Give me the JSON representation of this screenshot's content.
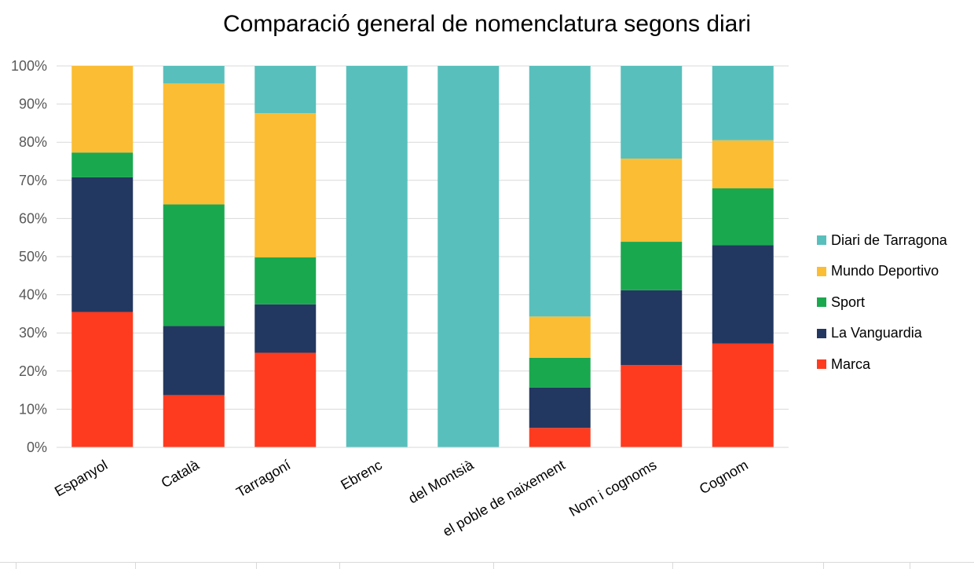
{
  "chart_data": {
    "type": "bar",
    "stacked": true,
    "percent": true,
    "title": "Comparació general de nomenclatura segons diari",
    "categories": [
      "Espanyol",
      "Català",
      "Tarragoní",
      "Ebrenc",
      "del Montsià",
      "el poble de naixement",
      "Nom i cognoms",
      "Cognom"
    ],
    "series": [
      {
        "name": "Marca",
        "color": "#ff3b1f",
        "values": [
          35.5,
          13.7,
          24.8,
          0,
          0,
          5.1,
          21.6,
          27.2
        ]
      },
      {
        "name": "La Vanguardia",
        "color": "#233860",
        "values": [
          35.3,
          18.1,
          12.7,
          0,
          0,
          10.6,
          19.6,
          25.8
        ]
      },
      {
        "name": "Sport",
        "color": "#1aa84f",
        "values": [
          6.5,
          31.9,
          12.3,
          0,
          0,
          7.8,
          12.7,
          14.9
        ]
      },
      {
        "name": "Mundo Deportivo",
        "color": "#fbbd33",
        "values": [
          22.7,
          31.7,
          37.8,
          0,
          0,
          10.8,
          21.8,
          12.6
        ]
      },
      {
        "name": "Diari de Tarragona",
        "color": "#58bfbc",
        "values": [
          0,
          4.6,
          12.4,
          100,
          100,
          65.7,
          24.3,
          19.5
        ]
      }
    ],
    "yticks": [
      "0%",
      "10%",
      "20%",
      "30%",
      "40%",
      "50%",
      "60%",
      "70%",
      "80%",
      "90%",
      "100%"
    ],
    "ylim": [
      0,
      100
    ],
    "grid": true,
    "legend_position": "right"
  }
}
